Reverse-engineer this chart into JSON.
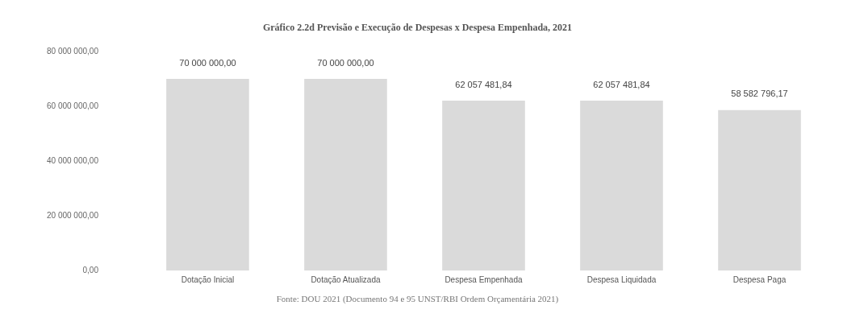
{
  "chart_data": {
    "type": "bar",
    "title": "Gráfico 2.2d Previsão e Execução de Despesas x Despesa Empenhada, 2021",
    "categories": [
      "Dotação Inicial",
      "Dotação Atualizada",
      "Despesa Empenhada",
      "Despesa Liquidada",
      "Despesa Paga"
    ],
    "values": [
      70000000,
      70000000,
      62057481.84,
      62057481.84,
      58582796.17
    ],
    "value_labels": [
      "70 000 000,00",
      "70 000 000,00",
      "62 057 481,84",
      "62 057 481,84",
      "58 582 796,17"
    ],
    "color": "#dadada",
    "ylim": [
      0,
      80000000
    ],
    "yticks": [
      {
        "value": 0,
        "label": "0,00"
      },
      {
        "value": 20000000,
        "label": "20 000 000,00"
      },
      {
        "value": 40000000,
        "label": "40 000 000,00"
      },
      {
        "value": 60000000,
        "label": "60 000 000,00"
      },
      {
        "value": 80000000,
        "label": "80 000 000,00"
      }
    ],
    "grid": false,
    "legend": false,
    "annotations": [
      "Fonte: DOU 2021 (Documento 94 e 95 UNST/RBI Ordem Orçamentária 2021)"
    ]
  }
}
